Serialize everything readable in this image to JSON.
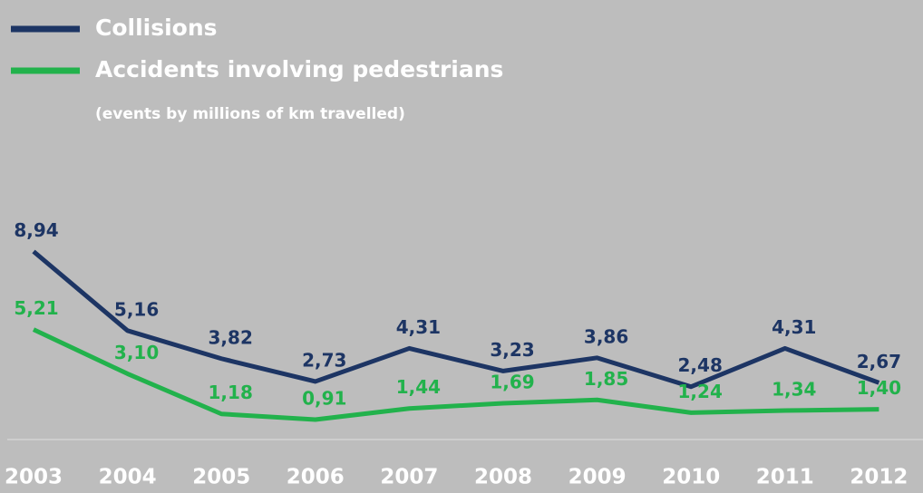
{
  "chart_data": {
    "type": "line",
    "subtitle": "(events by millions of km travelled)",
    "categories": [
      "2003",
      "2004",
      "2005",
      "2006",
      "2007",
      "2008",
      "2009",
      "2010",
      "2011",
      "2012"
    ],
    "series": [
      {
        "name": "Collisions",
        "color": "#1d3564",
        "values": [
          8.94,
          5.16,
          3.82,
          2.73,
          4.31,
          3.23,
          3.86,
          2.48,
          4.31,
          2.67
        ],
        "value_labels": [
          "8,94",
          "5,16",
          "3,82",
          "2,73",
          "4,31",
          "3,23",
          "3,86",
          "2,48",
          "4,31",
          "2,67"
        ]
      },
      {
        "name": "Accidents involving pedestrians",
        "color": "#22b24c",
        "values": [
          5.21,
          3.1,
          1.18,
          0.91,
          1.44,
          1.69,
          1.85,
          1.24,
          1.34,
          1.4
        ],
        "value_labels": [
          "5,21",
          "3,10",
          "1,18",
          "0,91",
          "1,44",
          "1,69",
          "1,85",
          "1,24",
          "1,34",
          "1,40"
        ]
      }
    ],
    "ylim": [
      0,
      10
    ]
  }
}
